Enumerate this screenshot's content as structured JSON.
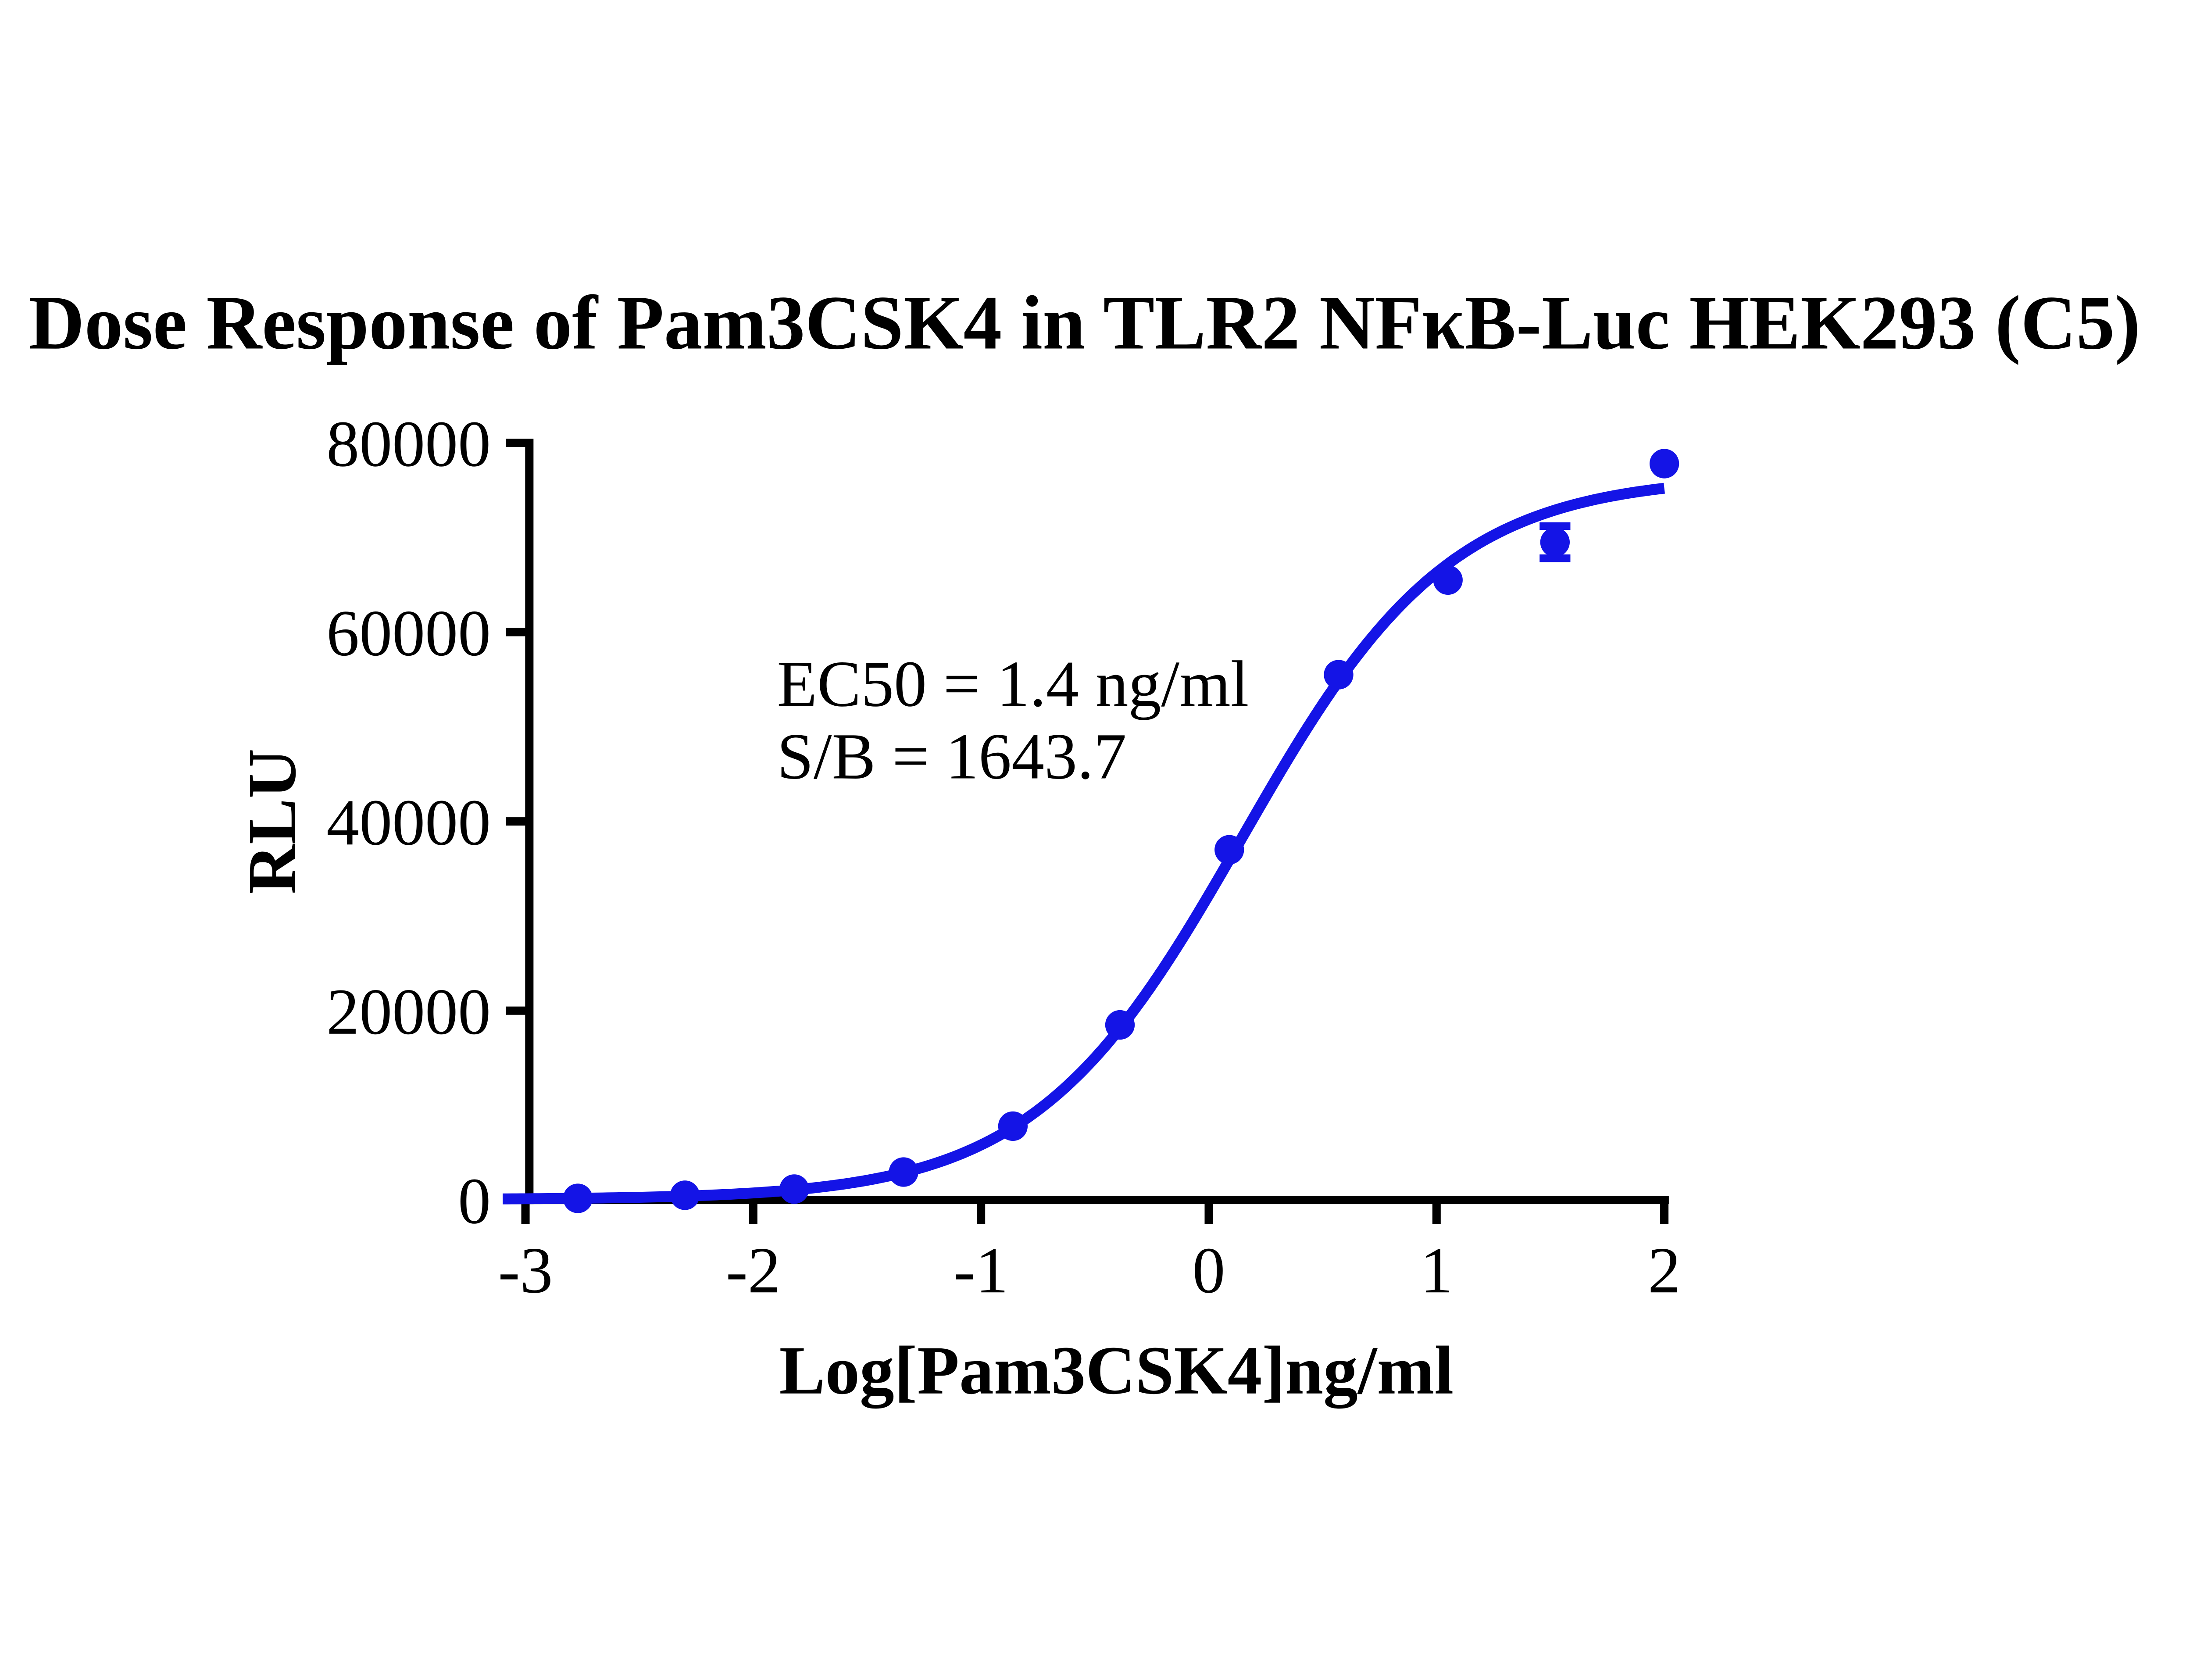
{
  "figure": {
    "background": "#FFFFFF",
    "accent_color": "#1414E6"
  },
  "chart_data": {
    "type": "scatter",
    "title": "Dose Response of Pam3CSK4 in TLR2 NFκB-Luc HEK293 (C5)",
    "xlabel": "Log[Pam3CSK4]ng/ml",
    "ylabel": "RLU",
    "annotations": [
      {
        "text": "EC50 = 1.4 ng/ml"
      },
      {
        "text": "S/B = 1643.7"
      }
    ],
    "x_ticks": [
      -3,
      -2,
      -1,
      0,
      1,
      2
    ],
    "y_ticks": [
      0,
      20000,
      40000,
      60000,
      80000
    ],
    "xlim": [
      -3.1,
      2.02
    ],
    "ylim": [
      0,
      80000
    ],
    "grid": false,
    "legend_position": "none",
    "series": [
      {
        "name": "Pam3CSK4",
        "marker": "circle",
        "color": "#1414E6",
        "points": [
          {
            "x": -2.77,
            "y": 170
          },
          {
            "x": -2.3,
            "y": 500
          },
          {
            "x": -1.82,
            "y": 1150
          },
          {
            "x": -1.34,
            "y": 2950
          },
          {
            "x": -0.86,
            "y": 7800
          },
          {
            "x": -0.39,
            "y": 18500
          },
          {
            "x": 0.09,
            "y": 37000
          },
          {
            "x": 0.57,
            "y": 55500
          },
          {
            "x": 1.05,
            "y": 65500
          },
          {
            "x": 1.52,
            "y": 69500,
            "error": 1700
          },
          {
            "x": 2.0,
            "y": 77800
          }
        ],
        "fit_curve": {
          "model": "four_parameter_logistic",
          "bottom": 50,
          "top": 76500,
          "log_ec50": 0.146,
          "hill_slope": 0.95,
          "x_start": -3.1,
          "x_end": 2.0
        }
      }
    ]
  }
}
